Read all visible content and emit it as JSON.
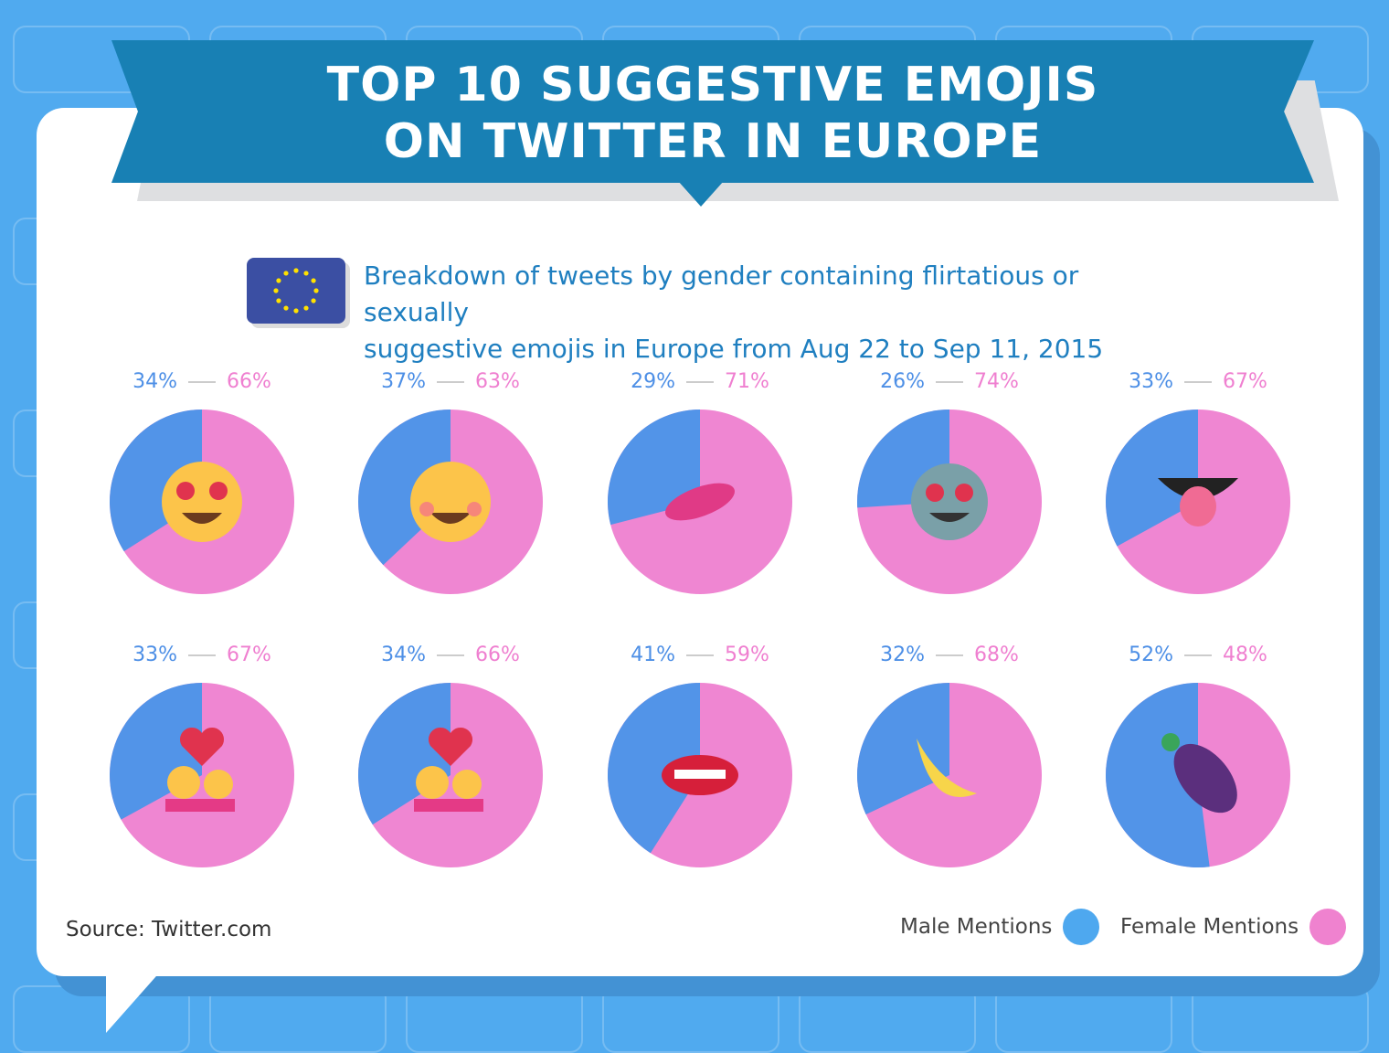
{
  "title_line1": "TOP 10 SUGGESTIVE EMOJIS",
  "title_line2": "ON TWITTER IN EUROPE",
  "subtitle_line1": "Breakdown of tweets by gender containing flirtatious or sexually",
  "subtitle_line2": "suggestive emojis in Europe from Aug 22 to Sep 11, 2015",
  "source": "Source: Twitter.com",
  "colors": {
    "male": "#5294e8",
    "female": "#ef86d2",
    "legend_male": "#4ea8ef",
    "legend_female": "#ef82cf",
    "banner": "#1880b4",
    "background": "#50aaef"
  },
  "chart_data": {
    "type": "pie",
    "title": "TOP 10 SUGGESTIVE EMOJIS ON TWITTER IN EUROPE",
    "legend": [
      "Male Mentions",
      "Female Mentions"
    ],
    "legend_position": "bottom-right",
    "items": [
      {
        "emoji": "heart-eyes-face-icon",
        "male": 34,
        "female": 66,
        "male_label": "34%",
        "female_label": "66%"
      },
      {
        "emoji": "kissing-face-icon",
        "male": 37,
        "female": 63,
        "male_label": "37%",
        "female_label": "63%"
      },
      {
        "emoji": "kiss-mark-icon",
        "male": 29,
        "female": 71,
        "male_label": "29%",
        "female_label": "71%"
      },
      {
        "emoji": "heart-eyes-cat-icon",
        "male": 26,
        "female": 74,
        "male_label": "26%",
        "female_label": "74%"
      },
      {
        "emoji": "tongue-icon",
        "male": 33,
        "female": 67,
        "male_label": "33%",
        "female_label": "67%"
      },
      {
        "emoji": "couple-with-heart-icon",
        "male": 33,
        "female": 67,
        "male_label": "33%",
        "female_label": "67%"
      },
      {
        "emoji": "kissing-couple-icon",
        "male": 34,
        "female": 66,
        "male_label": "34%",
        "female_label": "66%"
      },
      {
        "emoji": "mouth-icon",
        "male": 41,
        "female": 59,
        "male_label": "41%",
        "female_label": "59%"
      },
      {
        "emoji": "banana-icon",
        "male": 32,
        "female": 68,
        "male_label": "32%",
        "female_label": "68%"
      },
      {
        "emoji": "eggplant-icon",
        "male": 52,
        "female": 48,
        "male_label": "52%",
        "female_label": "48%"
      }
    ]
  }
}
